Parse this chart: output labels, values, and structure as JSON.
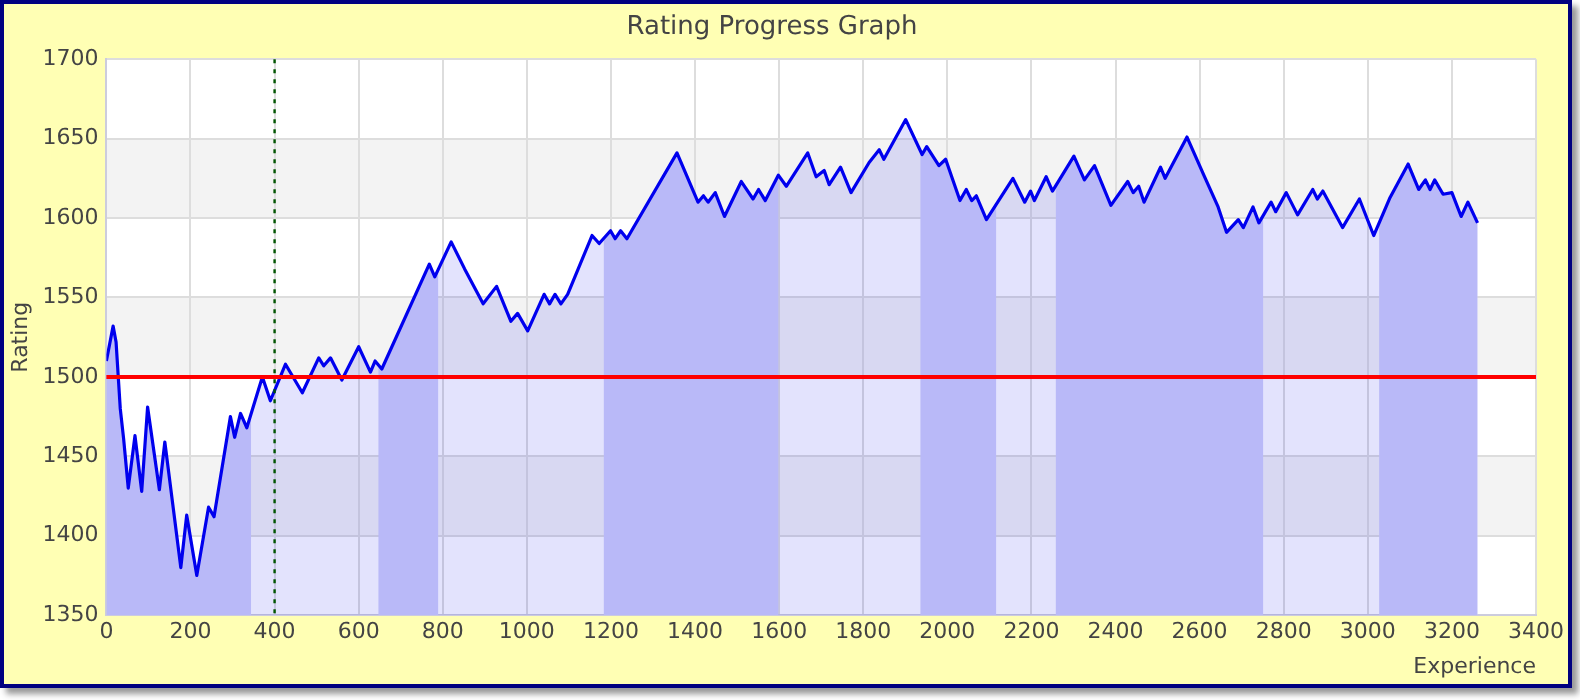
{
  "chart_data": {
    "type": "area",
    "title": "Rating Progress Graph",
    "xlabel": "Experience",
    "ylabel": "Rating",
    "xlim": [
      0,
      3400
    ],
    "xticks": [
      0,
      200,
      400,
      600,
      800,
      1000,
      1200,
      1400,
      1600,
      1800,
      2000,
      2200,
      2400,
      2600,
      2800,
      3000,
      3200,
      3400
    ],
    "ylim": [
      1350,
      1700
    ],
    "yticks": [
      1350,
      1400,
      1450,
      1500,
      1550,
      1600,
      1650,
      1700
    ],
    "grid": true,
    "marker": "none",
    "series": [
      {
        "color": "#0000ee",
        "x": [
          0,
          16,
          23,
          33,
          41,
          52,
          68,
          84,
          98,
          126,
          139,
          177,
          191,
          215,
          243,
          256,
          295,
          305,
          319,
          334,
          371,
          390,
          426,
          466,
          505,
          517,
          533,
          560,
          600,
          628,
          639,
          655,
          768,
          781,
          820,
          852,
          896,
          928,
          962,
          978,
          1002,
          1041,
          1054,
          1067,
          1081,
          1097,
          1155,
          1172,
          1199,
          1210,
          1223,
          1238,
          1357,
          1407,
          1420,
          1431,
          1448,
          1470,
          1510,
          1538,
          1551,
          1567,
          1598,
          1617,
          1668,
          1688,
          1707,
          1719,
          1746,
          1771,
          1814,
          1838,
          1849,
          1901,
          1940,
          1951,
          1980,
          1996,
          2030,
          2045,
          2058,
          2069,
          2093,
          2156,
          2184,
          2198,
          2207,
          2235,
          2250,
          2301,
          2326,
          2350,
          2389,
          2429,
          2442,
          2455,
          2468,
          2507,
          2518,
          2570,
          2610,
          2644,
          2664,
          2692,
          2704,
          2727,
          2741,
          2770,
          2781,
          2806,
          2833,
          2869,
          2880,
          2893,
          2940,
          2980,
          3014,
          3053,
          3096,
          3121,
          3137,
          3148,
          3159,
          3179,
          3200,
          3222,
          3238,
          3261
        ],
        "values": [
          1510,
          1532,
          1522,
          1480,
          1461,
          1430,
          1463,
          1428,
          1481,
          1429,
          1459,
          1380,
          1413,
          1375,
          1418,
          1412,
          1475,
          1462,
          1477,
          1468,
          1500,
          1485,
          1508,
          1490,
          1512,
          1507,
          1512,
          1498,
          1519,
          1503,
          1510,
          1505,
          1571,
          1563,
          1585,
          1568,
          1546,
          1557,
          1535,
          1540,
          1529,
          1552,
          1546,
          1552,
          1546,
          1552,
          1589,
          1584,
          1592,
          1587,
          1592,
          1587,
          1641,
          1610,
          1614,
          1610,
          1616,
          1601,
          1623,
          1612,
          1618,
          1611,
          1627,
          1620,
          1641,
          1626,
          1630,
          1621,
          1632,
          1616,
          1635,
          1643,
          1637,
          1662,
          1640,
          1645,
          1633,
          1637,
          1611,
          1618,
          1611,
          1614,
          1599,
          1625,
          1610,
          1617,
          1611,
          1626,
          1617,
          1639,
          1624,
          1633,
          1608,
          1623,
          1616,
          1620,
          1610,
          1632,
          1625,
          1651,
          1627,
          1607,
          1591,
          1599,
          1594,
          1607,
          1597,
          1610,
          1604,
          1616,
          1602,
          1618,
          1612,
          1617,
          1594,
          1612,
          1589,
          1613,
          1634,
          1618,
          1624,
          1618,
          1624,
          1615,
          1616,
          1601,
          1610,
          1597
        ]
      }
    ],
    "ref_lines": [
      {
        "axis": "y",
        "value": 1500,
        "color": "#ff0000",
        "line_style": "solid"
      },
      {
        "axis": "x",
        "value": 400,
        "color": "#005500",
        "line_style": "dotted"
      }
    ],
    "bands": [
      {
        "axis": "x",
        "from": 0,
        "to": 344,
        "color": "#d0d0fa"
      },
      {
        "axis": "x",
        "from": 647,
        "to": 789,
        "color": "#d0d0fa"
      },
      {
        "axis": "x",
        "from": 1183,
        "to": 1598,
        "color": "#d0d0fa"
      },
      {
        "axis": "x",
        "from": 1936,
        "to": 2116,
        "color": "#d0d0fa"
      },
      {
        "axis": "x",
        "from": 2258,
        "to": 2751,
        "color": "#d0d0fa"
      },
      {
        "axis": "x",
        "from": 3027,
        "to": 3263,
        "color": "#d0d0fa"
      }
    ]
  }
}
